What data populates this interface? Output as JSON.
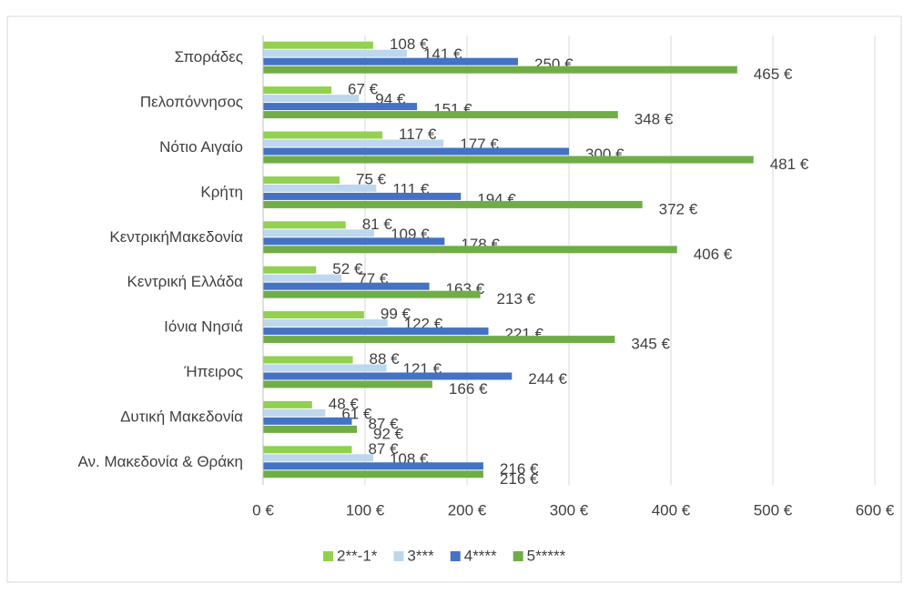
{
  "chart_data": {
    "type": "hbar",
    "categories": [
      "Σποράδες",
      "Πελοπόννησος",
      "Νότιο Αιγαίο",
      "Κρήτη",
      "ΚεντρικήΜακεδονία",
      "Κεντρική Ελλάδα",
      "Ιόνια Νησιά",
      "Ήπειρος",
      "Δυτική Μακεδονία",
      "Αν. Μακεδονία & Θράκη"
    ],
    "series": [
      {
        "name": "2**-1*",
        "color": "#92d050",
        "values": [
          108,
          67,
          117,
          75,
          81,
          52,
          99,
          88,
          48,
          87
        ],
        "value_labels": [
          "108 €",
          "67 €",
          "117 €",
          "75 €",
          "81 €",
          "52 €",
          "99 €",
          "88 €",
          "48 €",
          "87 €"
        ]
      },
      {
        "name": "3***",
        "color": "#bdd7ee",
        "values": [
          141,
          94,
          177,
          111,
          109,
          77,
          122,
          121,
          61,
          108
        ],
        "value_labels": [
          "141 €",
          "94 €",
          "177 €",
          "111 €",
          "109 €",
          "77 €",
          "122 €",
          "121 €",
          "61 €",
          "108 €"
        ]
      },
      {
        "name": "4****",
        "color": "#4472c4",
        "values": [
          250,
          151,
          300,
          194,
          178,
          163,
          221,
          244,
          87,
          216
        ],
        "value_labels": [
          "250 €",
          "151 €",
          "300 €",
          "194 €",
          "178 €",
          "163 €",
          "221 €",
          "244 €",
          "87 €",
          "216 €"
        ]
      },
      {
        "name": "5*****",
        "color": "#70ad47",
        "values": [
          465,
          348,
          481,
          372,
          406,
          213,
          345,
          166,
          92,
          216
        ],
        "value_labels": [
          "465 €",
          "348 €",
          "481 €",
          "372 €",
          "406 €",
          "213 €",
          "345 €",
          "166 €",
          "92 €",
          "216 €"
        ]
      }
    ],
    "xlim": [
      0,
      600
    ],
    "xticks": [
      {
        "value": 0,
        "label": "0 €"
      },
      {
        "value": 100,
        "label": "100 €"
      },
      {
        "value": 200,
        "label": "200 €"
      },
      {
        "value": 300,
        "label": "300 €"
      },
      {
        "value": 400,
        "label": "400 €"
      },
      {
        "value": 500,
        "label": "500 €"
      },
      {
        "value": 600,
        "label": "600 €"
      }
    ],
    "grid": true,
    "legend": "bottom"
  }
}
